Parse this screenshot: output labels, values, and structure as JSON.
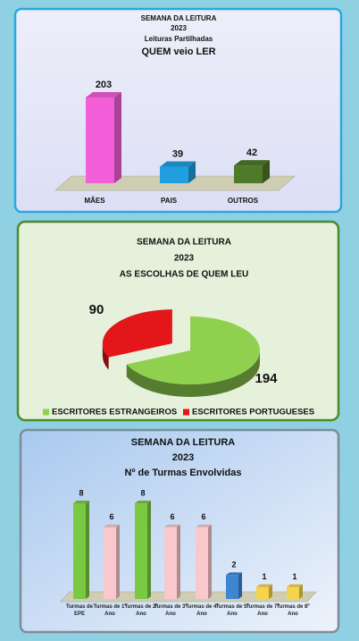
{
  "chart_data": [
    {
      "type": "bar3d",
      "title": [
        "SEMANA DA LEITURA",
        "2023",
        "Leituras Partilhadas",
        "QUEM veio LER"
      ],
      "categories": [
        "MÃES",
        "PAIS",
        "OUTROS"
      ],
      "values": [
        203,
        39,
        42
      ],
      "colors": [
        "#f25fd8",
        "#1f9fe0",
        "#4e7a2a"
      ]
    },
    {
      "type": "pie",
      "title": [
        "SEMANA DA LEITURA",
        "2023",
        "AS ESCOLHAS DE QUEM LEU"
      ],
      "categories": [
        "ESCRITORES ESTRANGEIROS",
        "ESCRITORES PORTUGUESES"
      ],
      "values": [
        194,
        90
      ],
      "colors": [
        "#8fd14f",
        "#e3161a"
      ],
      "legend": "bottom"
    },
    {
      "type": "bar3d",
      "title": [
        "SEMANA DA LEITURA",
        "2023",
        "Nº de Turmas Envolvidas"
      ],
      "categories": [
        "Turmas de EPE",
        "Turmas de 1º Ano",
        "Turmas de 2º Ano",
        "Turmas de 3º Ano",
        "Turmas de 4º Ano",
        "Turmas de 5º Ano",
        "Turmas de 7º Ano",
        "Turmas de 8º Ano"
      ],
      "values": [
        8,
        6,
        8,
        6,
        6,
        2,
        1,
        1
      ],
      "colors": [
        "#7ac943",
        "#f8c8cc",
        "#7ac943",
        "#f8c8cc",
        "#f8c8cc",
        "#3f86d0",
        "#f5d34a",
        "#f5d34a"
      ]
    }
  ]
}
